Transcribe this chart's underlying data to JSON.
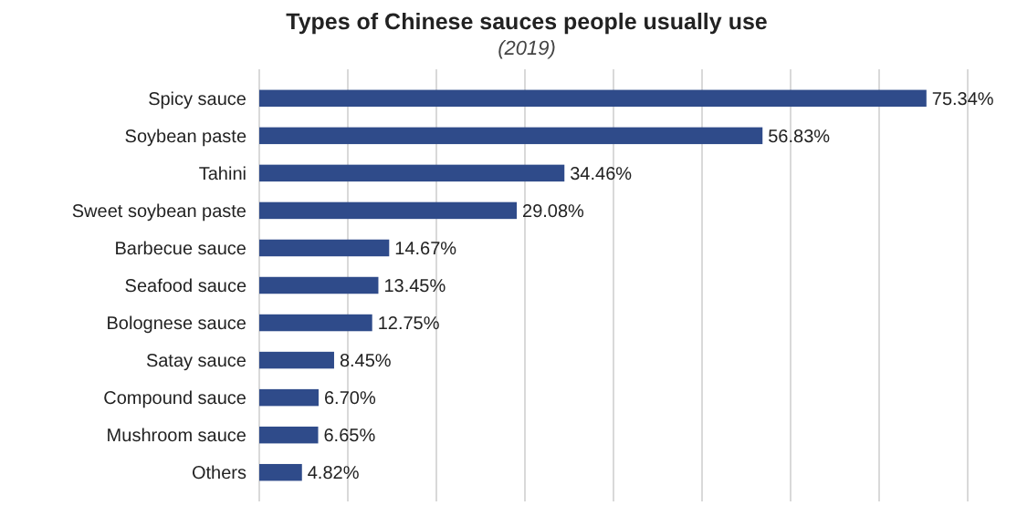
{
  "chart_data": {
    "type": "bar",
    "orientation": "horizontal",
    "title": "Types  of Chinese sauces people usually use",
    "subtitle": "(2019)",
    "categories": [
      "Spicy sauce",
      "Soybean paste",
      "Tahini",
      "Sweet soybean paste",
      "Barbecue sauce",
      "Seafood sauce",
      "Bolognese sauce",
      "Satay sauce",
      "Compound sauce",
      "Mushroom sauce",
      "Others"
    ],
    "values": [
      75.34,
      56.83,
      34.46,
      29.08,
      14.67,
      13.45,
      12.75,
      8.45,
      6.7,
      6.65,
      4.82
    ],
    "value_labels": [
      "75.34%",
      "56.83%",
      "34.46%",
      "29.08%",
      "14.67%",
      "13.45%",
      "12.75%",
      "8.45%",
      "6.70%",
      "6.65%",
      "4.82%"
    ],
    "color": "#2f4b8a",
    "xlim": [
      0,
      80
    ],
    "xticks": [
      {
        "value": 0,
        "label": null
      },
      {
        "value": 10,
        "label": null
      },
      {
        "value": 20,
        "label": null
      },
      {
        "value": 30,
        "label": null
      },
      {
        "value": 40,
        "label": null
      },
      {
        "value": 50,
        "label": null
      },
      {
        "value": 60,
        "label": null
      },
      {
        "value": 70,
        "label": null
      },
      {
        "value": 80,
        "label": null
      }
    ],
    "grid": "x",
    "tick_labels": "y"
  }
}
